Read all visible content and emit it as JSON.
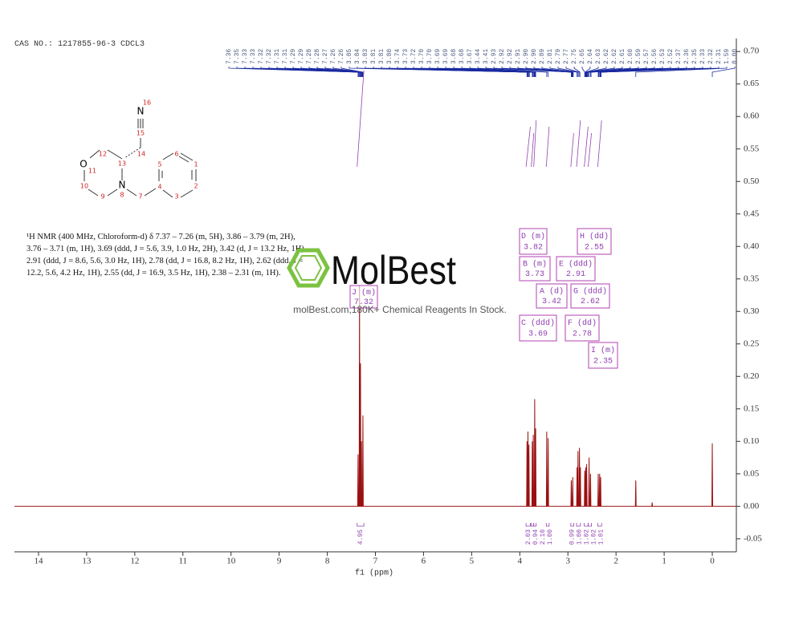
{
  "header": "CAS NO.: 1217855-96-3 CDCL3",
  "description": "¹H NMR (400 MHz, Chloroform-d) δ 7.37 – 7.26 (m, 5H), 3.86 – 3.79 (m, 2H), 3.76 – 3.71 (m, 1H), 3.69 (ddd, J = 5.6, 3.9, 1.0 Hz, 2H), 3.42 (d, J = 13.2 Hz, 1H), 2.91 (ddd, J = 8.6, 5.6, 3.0 Hz, 1H), 2.78 (dd, J = 16.8, 8.2 Hz, 1H), 2.62 (ddd, J = 12.2, 5.6, 4.2 Hz, 1H), 2.55 (dd, J = 16.9, 3.5 Hz, 1H), 2.38 – 2.31 (m, 1H).",
  "watermark": {
    "brand": "MolBest",
    "tagline": "molBest.com,180K+ Chemical Reagents In Stock."
  },
  "structure": {
    "atoms": [
      "N",
      "O",
      "N"
    ],
    "numbers": [
      16,
      15,
      14,
      13,
      12,
      11,
      10,
      9,
      8,
      7,
      4,
      5,
      6,
      1,
      2,
      3
    ]
  },
  "chart_data": {
    "type": "line",
    "xlabel": "f1 (ppm)",
    "xlim": [
      14.5,
      -0.5
    ],
    "xticks": [
      14,
      13,
      12,
      11,
      10,
      9,
      8,
      7,
      6,
      5,
      4,
      3,
      2,
      1,
      0
    ],
    "ylim": [
      -0.07,
      0.72
    ],
    "yticks": [
      {
        "value": 0.7,
        "label": "0.70"
      },
      0.65,
      {
        "value": 0.6,
        "label": "0.60"
      },
      0.55,
      {
        "value": 0.5,
        "label": "0.50"
      },
      0.45,
      {
        "value": 0.4,
        "label": "0.40"
      },
      0.35,
      {
        "value": 0.3,
        "label": "0.30"
      },
      0.25,
      {
        "value": 0.2,
        "label": "0.20"
      },
      0.15,
      {
        "value": 0.1,
        "label": "0.10"
      },
      0.05,
      {
        "value": 0,
        "label": "0.00"
      },
      -0.05
    ],
    "color": "#9a1010",
    "x": [
      14.5,
      7.368,
      7.36,
      7.352,
      7.338,
      7.33,
      7.322,
      7.318,
      7.31,
      7.302,
      7.298,
      7.29,
      7.282,
      7.268,
      7.26,
      7.252,
      3.858,
      3.85,
      3.842,
      3.838,
      3.83,
      3.822,
      3.818,
      3.81,
      3.802,
      3.748,
      3.74,
      3.732,
      3.728,
      3.72,
      3.712,
      3.698,
      3.69,
      3.682,
      3.678,
      3.67,
      3.662,
      3.448,
      3.44,
      3.432,
      3.418,
      3.41,
      3.402,
      2.938,
      2.93,
      2.922,
      2.908,
      2.9,
      2.892,
      2.818,
      2.81,
      2.802,
      2.798,
      2.79,
      2.782,
      2.768,
      2.76,
      2.752,
      2.748,
      2.74,
      2.732,
      2.658,
      2.65,
      2.642,
      2.638,
      2.63,
      2.622,
      2.618,
      2.61,
      2.602,
      2.568,
      2.56,
      2.552,
      2.538,
      2.53,
      2.522,
      2.378,
      2.37,
      2.362,
      2.348,
      2.34,
      2.332,
      2.328,
      2.32,
      2.312,
      1.598,
      1.59,
      1.582,
      1.258,
      1.25,
      1.242,
      0.008,
      0,
      -0.008,
      -0.5
    ],
    "values": [
      0,
      0,
      0.08,
      0,
      0,
      0.34,
      0,
      0,
      0.22,
      0,
      0,
      0.1,
      0,
      0,
      0.14,
      0,
      0,
      0.1,
      0,
      0,
      0.115,
      0,
      0,
      0.095,
      0,
      0,
      0.1,
      0,
      0,
      0.11,
      0,
      0,
      0.165,
      0,
      0,
      0.12,
      0,
      0,
      0.115,
      0,
      0,
      0.105,
      0,
      0,
      0.04,
      0,
      0,
      0.045,
      0,
      0,
      0.06,
      0,
      0,
      0.085,
      0,
      0,
      0.09,
      0,
      0,
      0.06,
      0,
      0,
      0.055,
      0,
      0,
      0.06,
      0,
      0,
      0.065,
      0,
      0,
      0.075,
      0,
      0,
      0.05,
      0,
      0,
      0.05,
      0,
      0,
      0.05,
      0,
      0,
      0.045,
      0,
      0,
      0.04,
      0,
      0,
      0.006,
      0,
      0,
      0.097,
      0,
      0
    ],
    "peak_labels": [
      7.36,
      7.35,
      7.33,
      7.33,
      7.32,
      7.32,
      7.31,
      7.31,
      7.29,
      7.29,
      7.28,
      7.28,
      7.27,
      7.26,
      7.26,
      3.85,
      3.84,
      3.83,
      3.81,
      3.81,
      {
        "value": 3.8,
        "label": "3.80"
      },
      3.74,
      3.73,
      3.72,
      {
        "value": 3.7,
        "label": "3.70"
      },
      {
        "value": 3.7,
        "label": "3.70"
      },
      3.69,
      3.69,
      3.68,
      3.68,
      3.67,
      3.44,
      3.41,
      2.93,
      2.92,
      2.92,
      2.91,
      {
        "value": 2.9,
        "label": "2.90"
      },
      {
        "value": 2.9,
        "label": "2.90"
      },
      2.89,
      2.81,
      2.79,
      2.77,
      2.75,
      2.65,
      2.64,
      2.63,
      2.62,
      2.62,
      2.61,
      {
        "value": 2.6,
        "label": "2.60"
      },
      2.59,
      2.57,
      2.56,
      2.53,
      2.52,
      2.37,
      2.36,
      2.35,
      2.33,
      2.32,
      2.31,
      1.59,
      {
        "value": 0,
        "label": "0.00"
      }
    ],
    "multiplets": [
      {
        "label": "J (m)",
        "shift": 7.32
      },
      {
        "label": "D (m)",
        "shift": 3.82
      },
      {
        "label": "H (dd)",
        "shift": 2.55
      },
      {
        "label": "B (m)",
        "shift": 3.73
      },
      {
        "label": "E (ddd)",
        "shift": 2.91
      },
      {
        "label": "A (d)",
        "shift": 3.42
      },
      {
        "label": "G (ddd)",
        "shift": 2.62
      },
      {
        "label": "C (ddd)",
        "shift": 3.69
      },
      {
        "label": "F (dd)",
        "shift": 2.78
      },
      {
        "label": "I (m)",
        "shift": 2.35
      }
    ],
    "integrals": {
      "ranges": [
        [
          7.38,
          7.24
        ],
        [
          3.87,
          3.78
        ],
        [
          3.76,
          3.71
        ],
        [
          3.71,
          3.66
        ],
        [
          3.45,
          3.39
        ],
        [
          2.94,
          2.88
        ],
        [
          2.82,
          2.74
        ],
        [
          2.66,
          2.58
        ],
        [
          2.58,
          2.51
        ],
        [
          2.38,
          2.3
        ]
      ],
      "values": [
        4.95,
        2.03,
        0.94,
        2.1,
        1,
        0.99,
        1,
        1.02,
        1.02,
        1.01
      ],
      "value_labels": [
        "4.95",
        "2.03",
        "0.94",
        "2.10",
        "1.00",
        "0.99",
        "1.00",
        "1.02",
        "1.02",
        "1.01"
      ]
    }
  }
}
